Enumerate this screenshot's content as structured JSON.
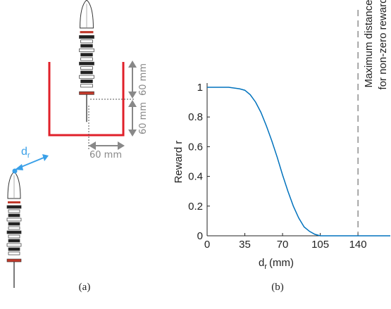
{
  "diagram": {
    "dim_upper": "60 mm",
    "dim_lower": "60 mm",
    "dim_horizontal": "60 mm",
    "distance_symbol": "d",
    "distance_subscript": "r"
  },
  "captions": [
    "(a)",
    "(b)"
  ],
  "chart_data": {
    "type": "line",
    "y_label": "Reward r",
    "x_label": {
      "symbol": "d",
      "subscript": "r",
      "unit": "(mm)"
    },
    "x": [
      0,
      10,
      20,
      30,
      35,
      40,
      45,
      50,
      55,
      60,
      65,
      70,
      75,
      80,
      85,
      90,
      95,
      100,
      105,
      110,
      120,
      140,
      170
    ],
    "values": [
      1,
      1,
      1,
      0.99,
      0.98,
      0.95,
      0.9,
      0.83,
      0.74,
      0.64,
      0.53,
      0.41,
      0.3,
      0.2,
      0.12,
      0.06,
      0.03,
      0.01,
      0,
      0,
      0,
      0,
      0
    ],
    "color": "#0072bd",
    "xlim": [
      0,
      170
    ],
    "ylim": [
      0,
      1
    ],
    "xticks": [
      0,
      35,
      70,
      105,
      140
    ],
    "yticks": [
      0,
      0.2,
      0.4,
      0.6,
      0.8,
      1
    ],
    "threshold": 140,
    "annotation": [
      "Maximum distance",
      "for non-zero reward"
    ]
  }
}
